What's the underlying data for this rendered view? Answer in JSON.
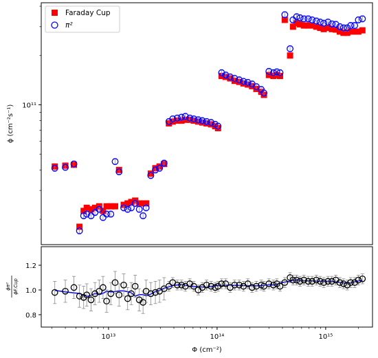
{
  "chart_data": [
    {
      "type": "scatter",
      "ylabel": "ϕ (cm⁻²s⁻¹)",
      "xscale": "log",
      "yscale": "log",
      "xlim": [
        2400000000000.0,
        2700000000000000.0
      ],
      "ylim": [
        14000000000.0,
        420000000000.0
      ],
      "y_ticks": [
        {
          "value": 100000000000.0,
          "label": "10¹¹"
        }
      ],
      "legend": {
        "position": "top-left",
        "entries": [
          {
            "label": "Faraday Cup",
            "marker": "square",
            "color": "#ff0000"
          },
          {
            "label": "π²",
            "marker": "open-circle",
            "color": "#0000ff"
          }
        ]
      },
      "series": [
        {
          "name": "Faraday Cup",
          "marker": "square",
          "color": "#ff0000",
          "x": [
            3200000000000.0,
            4000000000000.0,
            4800000000000.0,
            5400000000000.0,
            5900000000000.0,
            6300000000000.0,
            6900000000000.0,
            7500000000000.0,
            8200000000000.0,
            8900000000000.0,
            9600000000000.0,
            10500000000000.0,
            11500000000000.0,
            12500000000000.0,
            13800000000000.0,
            15000000000000.0,
            16200000000000.0,
            17600000000000.0,
            19200000000000.0,
            20800000000000.0,
            22200000000000.0,
            24500000000000.0,
            27000000000000.0,
            29500000000000.0,
            32500000000000.0,
            36000000000000.0,
            39000000000000.0,
            43000000000000.0,
            47000000000000.0,
            51000000000000.0,
            56000000000000.0,
            61000000000000.0,
            67000000000000.0,
            73000000000000.0,
            80000000000000.0,
            88000000000000.0,
            96000000000000.0,
            102000000000000.0,
            110000000000000.0,
            120000000000000.0,
            132000000000000.0,
            145000000000000.0,
            160000000000000.0,
            175000000000000.0,
            192000000000000.0,
            210000000000000.0,
            230000000000000.0,
            255000000000000.0,
            270000000000000.0,
            300000000000000.0,
            330000000000000.0,
            355000000000000.0,
            380000000000000.0,
            420000000000000.0,
            470000000000000.0,
            500000000000000.0,
            540000000000000.0,
            580000000000000.0,
            630000000000000.0,
            690000000000000.0,
            750000000000000.0,
            820000000000000.0,
            890000000000000.0,
            960000000000000.0,
            1050000000000000.0,
            1140000000000000.0,
            1240000000000000.0,
            1350000000000000.0,
            1460000000000000.0,
            1580000000000000.0,
            1700000000000000.0,
            1850000000000000.0,
            2000000000000000.0,
            2180000000000000.0
          ],
          "y": [
            42000000000.0,
            42500000000.0,
            43000000000.0,
            18000000000.0,
            22500000000.0,
            23500000000.0,
            23000000000.0,
            23500000000.0,
            24000000000.0,
            22500000000.0,
            24000000000.0,
            24000000000.0,
            24000000000.0,
            40000000000.0,
            24500000000.0,
            25000000000.0,
            25500000000.0,
            26000000000.0,
            25000000000.0,
            25000000000.0,
            25000000000.0,
            38000000000.0,
            41000000000.0,
            42000000000.0,
            43500000000.0,
            77000000000.0,
            79000000000.0,
            80000000000.0,
            80000000000.0,
            81000000000.0,
            81000000000.0,
            80000000000.0,
            79000000000.0,
            78000000000.0,
            77000000000.0,
            76000000000.0,
            74000000000.0,
            72000000000.0,
            150000000000.0,
            148000000000.0,
            145000000000.0,
            140000000000.0,
            138000000000.0,
            135000000000.0,
            133000000000.0,
            130000000000.0,
            125000000000.0,
            120000000000.0,
            115000000000.0,
            152000000000.0,
            150000000000.0,
            152000000000.0,
            150000000000.0,
            330000000000.0,
            200000000000.0,
            300000000000.0,
            315000000000.0,
            310000000000.0,
            305000000000.0,
            305000000000.0,
            305000000000.0,
            300000000000.0,
            295000000000.0,
            290000000000.0,
            295000000000.0,
            290000000000.0,
            288000000000.0,
            280000000000.0,
            275000000000.0,
            275000000000.0,
            280000000000.0,
            280000000000.0,
            280000000000.0,
            285000000000.0
          ]
        },
        {
          "name": "π²",
          "marker": "open-circle",
          "color": "#0000ff",
          "x": [
            3200000000000.0,
            4000000000000.0,
            4800000000000.0,
            5400000000000.0,
            5900000000000.0,
            6300000000000.0,
            6900000000000.0,
            7500000000000.0,
            8200000000000.0,
            8900000000000.0,
            9600000000000.0,
            10500000000000.0,
            11500000000000.0,
            12500000000000.0,
            13800000000000.0,
            15000000000000.0,
            16200000000000.0,
            17600000000000.0,
            19200000000000.0,
            20800000000000.0,
            22200000000000.0,
            24500000000000.0,
            27000000000000.0,
            29500000000000.0,
            32500000000000.0,
            36000000000000.0,
            39000000000000.0,
            43000000000000.0,
            47000000000000.0,
            51000000000000.0,
            56000000000000.0,
            61000000000000.0,
            67000000000000.0,
            73000000000000.0,
            80000000000000.0,
            88000000000000.0,
            96000000000000.0,
            102000000000000.0,
            110000000000000.0,
            120000000000000.0,
            132000000000000.0,
            145000000000000.0,
            160000000000000.0,
            175000000000000.0,
            192000000000000.0,
            210000000000000.0,
            230000000000000.0,
            255000000000000.0,
            270000000000000.0,
            300000000000000.0,
            330000000000000.0,
            355000000000000.0,
            380000000000000.0,
            420000000000000.0,
            470000000000000.0,
            500000000000000.0,
            540000000000000.0,
            580000000000000.0,
            630000000000000.0,
            690000000000000.0,
            750000000000000.0,
            820000000000000.0,
            890000000000000.0,
            960000000000000.0,
            1050000000000000.0,
            1140000000000000.0,
            1240000000000000.0,
            1350000000000000.0,
            1460000000000000.0,
            1580000000000000.0,
            1700000000000000.0,
            1850000000000000.0,
            2000000000000000.0,
            2180000000000000.0
          ],
          "y": [
            41000000000.0,
            41500000000.0,
            43500000000.0,
            17000000000.0,
            21000000000.0,
            21500000000.0,
            21000000000.0,
            22000000000.0,
            23000000000.0,
            20500000000.0,
            21500000000.0,
            21500000000.0,
            45000000000.0,
            39000000000.0,
            23500000000.0,
            23000000000.0,
            23500000000.0,
            25000000000.0,
            23000000000.0,
            21000000000.0,
            23500000000.0,
            37000000000.0,
            40000000000.0,
            41000000000.0,
            44000000000.0,
            79000000000.0,
            82000000000.0,
            83000000000.0,
            84000000000.0,
            85000000000.0,
            83000000000.0,
            82000000000.0,
            81000000000.0,
            80000000000.0,
            79000000000.0,
            78000000000.0,
            76000000000.0,
            74000000000.0,
            157000000000.0,
            152000000000.0,
            148000000000.0,
            145000000000.0,
            142000000000.0,
            139000000000.0,
            137000000000.0,
            134000000000.0,
            129000000000.0,
            124000000000.0,
            118000000000.0,
            160000000000.0,
            157000000000.0,
            159000000000.0,
            157000000000.0,
            355000000000.0,
            220000000000.0,
            330000000000.0,
            345000000000.0,
            340000000000.0,
            335000000000.0,
            335000000000.0,
            330000000000.0,
            325000000000.0,
            320000000000.0,
            315000000000.0,
            320000000000.0,
            312000000000.0,
            310000000000.0,
            300000000000.0,
            295000000000.0,
            295000000000.0,
            305000000000.0,
            305000000000.0,
            330000000000.0,
            335000000000.0
          ]
        }
      ]
    },
    {
      "type": "scatter",
      "xlabel": "Φ (cm⁻²)",
      "ylabel_num": "ϕπ²",
      "ylabel_den": "ϕF.Cup",
      "xscale": "log",
      "xlim": [
        2400000000000.0,
        2700000000000000.0
      ],
      "ylim": [
        0.7,
        1.35
      ],
      "x_ticks": [
        {
          "value": 10000000000000.0,
          "label": "10¹³"
        },
        {
          "value": 100000000000000.0,
          "label": "10¹⁴"
        },
        {
          "value": 1000000000000000.0,
          "label": "10¹⁵"
        }
      ],
      "y_ticks": [
        {
          "value": 0.8,
          "label": "0.8"
        },
        {
          "value": 1.0,
          "label": "1.0"
        },
        {
          "value": 1.2,
          "label": "1.2"
        }
      ],
      "series": [
        {
          "marker": "open-circle",
          "color": "#000000",
          "line_color": "#0000ff",
          "x": [
            3200000000000.0,
            4000000000000.0,
            4800000000000.0,
            5400000000000.0,
            5900000000000.0,
            6300000000000.0,
            6900000000000.0,
            7500000000000.0,
            8200000000000.0,
            8900000000000.0,
            9600000000000.0,
            10500000000000.0,
            11500000000000.0,
            12500000000000.0,
            13800000000000.0,
            15000000000000.0,
            16200000000000.0,
            17600000000000.0,
            19200000000000.0,
            20800000000000.0,
            22200000000000.0,
            24500000000000.0,
            27000000000000.0,
            29500000000000.0,
            32500000000000.0,
            36000000000000.0,
            39000000000000.0,
            43000000000000.0,
            47000000000000.0,
            51000000000000.0,
            56000000000000.0,
            61000000000000.0,
            67000000000000.0,
            73000000000000.0,
            80000000000000.0,
            88000000000000.0,
            96000000000000.0,
            102000000000000.0,
            110000000000000.0,
            120000000000000.0,
            132000000000000.0,
            145000000000000.0,
            160000000000000.0,
            175000000000000.0,
            192000000000000.0,
            210000000000000.0,
            230000000000000.0,
            255000000000000.0,
            270000000000000.0,
            300000000000000.0,
            330000000000000.0,
            355000000000000.0,
            380000000000000.0,
            420000000000000.0,
            470000000000000.0,
            500000000000000.0,
            540000000000000.0,
            580000000000000.0,
            630000000000000.0,
            690000000000000.0,
            750000000000000.0,
            820000000000000.0,
            890000000000000.0,
            960000000000000.0,
            1050000000000000.0,
            1140000000000000.0,
            1240000000000000.0,
            1350000000000000.0,
            1460000000000000.0,
            1580000000000000.0,
            1700000000000000.0,
            1850000000000000.0,
            2000000000000000.0,
            2180000000000000.0
          ],
          "y": [
            0.98,
            0.99,
            1.02,
            0.95,
            0.94,
            0.96,
            0.92,
            0.97,
            0.99,
            1.02,
            0.91,
            0.97,
            1.06,
            0.96,
            1.04,
            0.93,
            0.97,
            1.03,
            0.92,
            0.9,
            0.99,
            0.97,
            0.98,
            0.99,
            1.01,
            1.03,
            1.06,
            1.04,
            1.04,
            1.03,
            1.05,
            1.03,
            1.0,
            1.02,
            1.04,
            1.03,
            1.02,
            1.03,
            1.05,
            1.05,
            1.02,
            1.04,
            1.04,
            1.03,
            1.05,
            1.02,
            1.03,
            1.04,
            1.03,
            1.05,
            1.04,
            1.05,
            1.03,
            1.06,
            1.1,
            1.08,
            1.08,
            1.07,
            1.08,
            1.07,
            1.07,
            1.08,
            1.07,
            1.06,
            1.07,
            1.07,
            1.08,
            1.06,
            1.05,
            1.04,
            1.06,
            1.06,
            1.08,
            1.09
          ]
        }
      ]
    }
  ]
}
